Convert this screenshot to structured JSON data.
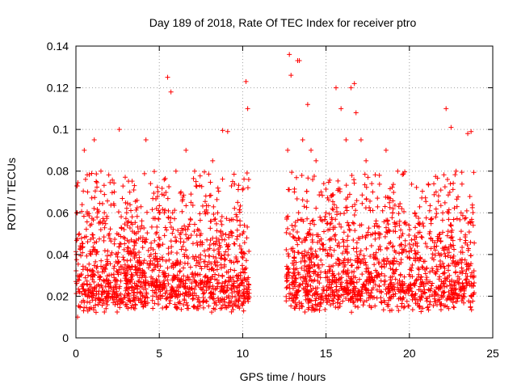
{
  "chart_data": {
    "type": "scatter",
    "title": "Day 189 of 2018, Rate Of TEC Index for receiver ptro",
    "xlabel": "GPS time / hours",
    "ylabel": "ROTI / TECUs",
    "xlim": [
      0,
      25
    ],
    "ylim": [
      0,
      0.14
    ],
    "xticks": [
      0,
      5,
      10,
      15,
      20,
      25
    ],
    "yticks": [
      0,
      0.02,
      0.04,
      0.06,
      0.08,
      0.1,
      0.12,
      0.14
    ],
    "xtick_labels": [
      "0",
      "5",
      "10",
      "15",
      "20",
      "25"
    ],
    "ytick_labels": [
      "0",
      "0.02",
      "0.04",
      "0.06",
      "0.08",
      "0.1",
      "0.12",
      "0.14"
    ],
    "grid": true,
    "marker": "+",
    "marker_color": "#ff0000",
    "data_gaps_hours": [
      [
        10.4,
        12.6
      ]
    ],
    "series": [
      {
        "name": "ROTI",
        "description_points": "dense ROTI samples between 0 and 10.4 h and 12.6 to 23.9 h, baseline ~0.015-0.045 TECU/min with spikes",
        "x": [
          0.05,
          0.1,
          0.2,
          0.3,
          0.5,
          0.7,
          0.9,
          1.1,
          1.3,
          1.5,
          1.6,
          1.8,
          2.0,
          2.3,
          2.6,
          2.7,
          3.0,
          3.3,
          3.6,
          4.0,
          4.2,
          4.5,
          4.8,
          5.0,
          5.3,
          5.5,
          5.7,
          5.8,
          6.0,
          6.3,
          6.6,
          6.9,
          7.2,
          7.5,
          7.9,
          8.2,
          8.5,
          8.8,
          9.1,
          9.4,
          9.7,
          10.0,
          10.2,
          10.3,
          12.7,
          12.8,
          12.9,
          13.1,
          13.3,
          13.4,
          13.6,
          13.9,
          14.1,
          14.4,
          14.7,
          15.0,
          15.3,
          15.6,
          15.9,
          16.2,
          16.5,
          16.7,
          16.8,
          17.1,
          17.4,
          17.8,
          18.2,
          18.6,
          19.0,
          19.3,
          19.6,
          20.0,
          20.4,
          20.8,
          21.2,
          21.6,
          22.0,
          22.2,
          22.5,
          22.8,
          23.1,
          23.5,
          23.7
        ],
        "y": [
          0.06,
          0.01,
          0.05,
          0.03,
          0.09,
          0.07,
          0.04,
          0.095,
          0.06,
          0.08,
          0.055,
          0.035,
          0.05,
          0.07,
          0.1,
          0.045,
          0.03,
          0.04,
          0.05,
          0.03,
          0.095,
          0.04,
          0.05,
          0.06,
          0.06,
          0.125,
          0.118,
          0.06,
          0.08,
          0.07,
          0.09,
          0.065,
          0.075,
          0.05,
          0.06,
          0.085,
          0.06,
          0.0995,
          0.099,
          0.075,
          0.065,
          0.05,
          0.123,
          0.11,
          0.09,
          0.136,
          0.126,
          0.07,
          0.133,
          0.133,
          0.095,
          0.112,
          0.09,
          0.085,
          0.07,
          0.06,
          0.055,
          0.12,
          0.11,
          0.095,
          0.12,
          0.122,
          0.108,
          0.095,
          0.085,
          0.07,
          0.05,
          0.09,
          0.06,
          0.08,
          0.05,
          0.045,
          0.04,
          0.055,
          0.05,
          0.07,
          0.06,
          0.11,
          0.101,
          0.08,
          0.06,
          0.098,
          0.099
        ]
      }
    ]
  }
}
